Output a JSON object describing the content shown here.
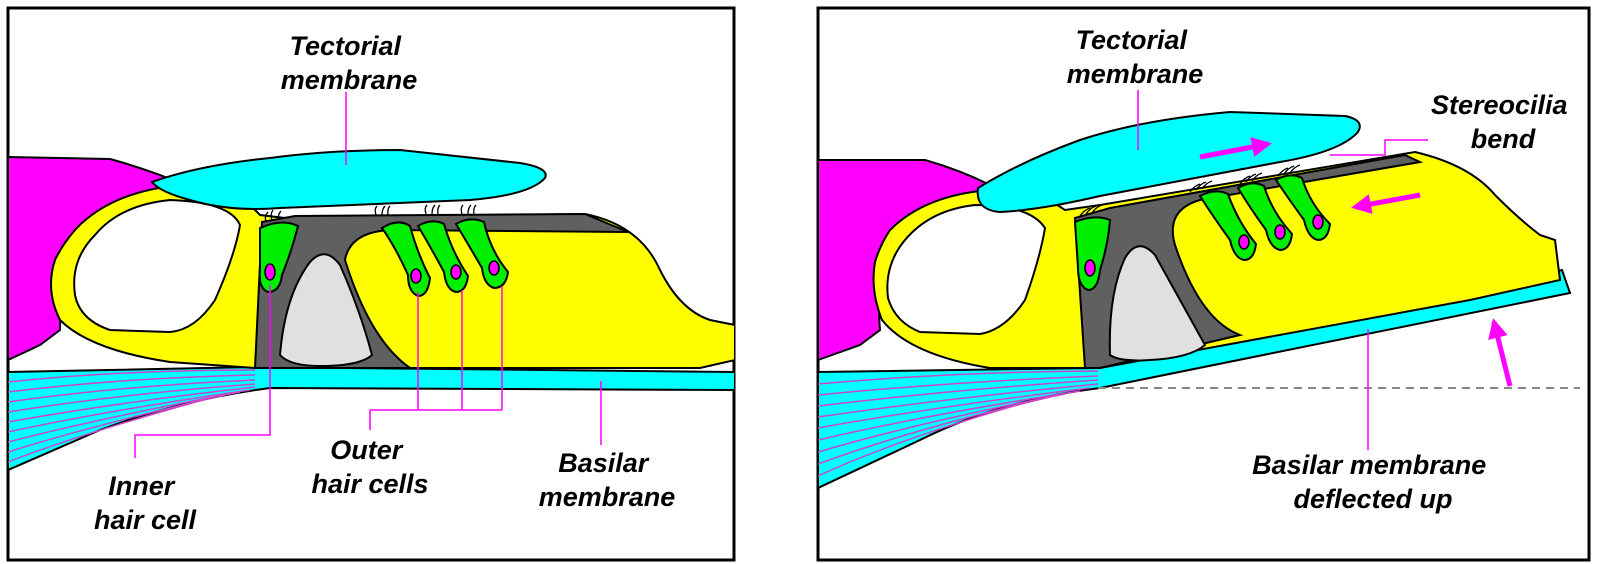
{
  "panels": {
    "resting": {
      "tectorial_membrane": [
        "Tectorial",
        "membrane"
      ],
      "inner_hair_cell": [
        "Inner",
        "hair cell"
      ],
      "outer_hair_cells": [
        "Outer",
        "hair cells"
      ],
      "basilar_membrane": [
        "Basilar",
        "membrane"
      ]
    },
    "deflected": {
      "tectorial_membrane": [
        "Tectorial",
        "membrane"
      ],
      "stereocilia_bend": [
        "Stereocilia",
        "bend"
      ],
      "basilar_membrane_deflected": [
        "Basilar membrane",
        "deflected up"
      ]
    }
  },
  "colors": {
    "tectorial": "#00ffff",
    "organ": "#ffff00",
    "limbus": "#ff00ff",
    "hair_cell": "#00ee00",
    "nucleus": "#ff00ff",
    "pillar": "#606060",
    "tunnel": "#e0e0e0",
    "leader_line": "#ff00ff",
    "arrow": "#ff00ff",
    "fiber": "#cc44cc"
  }
}
